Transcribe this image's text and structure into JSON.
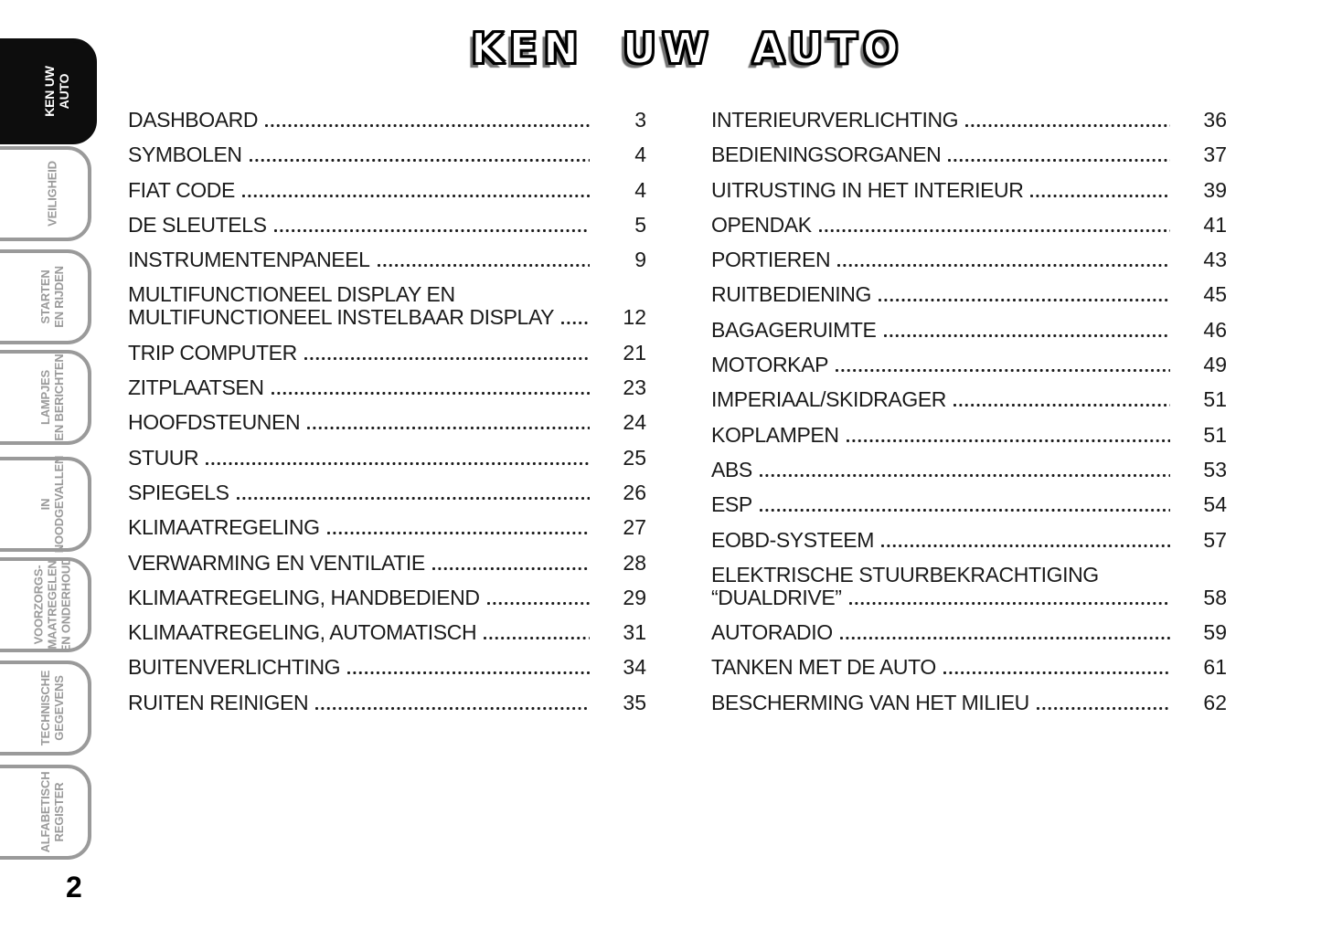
{
  "page": {
    "title": "KEN UW AUTO",
    "page_number": "2",
    "colors": {
      "text": "#1a1a1a",
      "tab_inactive_border": "#9a9a9a",
      "tab_inactive_text": "#9a9a9a",
      "tab_active_bg": "#0d0d0d",
      "tab_active_text": "#ffffff",
      "background": "#ffffff"
    }
  },
  "sidebar": {
    "tabs": [
      {
        "label": "KEN UW\nAUTO",
        "active": true
      },
      {
        "label": "VEILIGHEID",
        "active": false
      },
      {
        "label": "STARTEN\nEN RIJDEN",
        "active": false
      },
      {
        "label": "LAMPJES\nEN BERICHTEN",
        "active": false
      },
      {
        "label": "IN\nNOODGEVALLEN",
        "active": false
      },
      {
        "label": "VOORZORGS-\nMAATREGELEN\nEN ONDERHOUD",
        "active": false
      },
      {
        "label": "TECHNISCHE\nGEGEVENS",
        "active": false
      },
      {
        "label": "ALFABETISCH\nREGISTER",
        "active": false
      }
    ]
  },
  "toc": {
    "left": [
      {
        "label": "DASHBOARD",
        "page": "3"
      },
      {
        "label": "SYMBOLEN",
        "page": "4"
      },
      {
        "label": "FIAT CODE",
        "page": "4"
      },
      {
        "label": "DE SLEUTELS",
        "page": "5"
      },
      {
        "label": "INSTRUMENTENPANEEL",
        "page": "9"
      },
      {
        "label": "MULTIFUNCTIONEEL DISPLAY EN",
        "label2": "MULTIFUNCTIONEEL INSTELBAAR DISPLAY",
        "page": "12"
      },
      {
        "label": "TRIP COMPUTER",
        "page": "21"
      },
      {
        "label": "ZITPLAATSEN",
        "page": "23"
      },
      {
        "label": "HOOFDSTEUNEN",
        "page": "24"
      },
      {
        "label": "STUUR",
        "page": "25"
      },
      {
        "label": "SPIEGELS",
        "page": "26"
      },
      {
        "label": "KLIMAATREGELING",
        "page": "27"
      },
      {
        "label": "VERWARMING EN VENTILATIE",
        "page": "28"
      },
      {
        "label": "KLIMAATREGELING, HANDBEDIEND",
        "page": "29"
      },
      {
        "label": "KLIMAATREGELING, AUTOMATISCH",
        "page": "31"
      },
      {
        "label": "BUITENVERLICHTING",
        "page": "34"
      },
      {
        "label": "RUITEN REINIGEN",
        "page": "35"
      }
    ],
    "right": [
      {
        "label": "INTERIEURVERLICHTING",
        "page": "36"
      },
      {
        "label": "BEDIENINGSORGANEN",
        "page": "37"
      },
      {
        "label": "UITRUSTING IN HET INTERIEUR",
        "page": "39"
      },
      {
        "label": "OPENDAK",
        "page": "41"
      },
      {
        "label": "PORTIEREN",
        "page": "43"
      },
      {
        "label": "RUITBEDIENING",
        "page": "45"
      },
      {
        "label": "BAGAGERUIMTE",
        "page": "46"
      },
      {
        "label": "MOTORKAP",
        "page": "49"
      },
      {
        "label": "IMPERIAAL/SKIDRAGER",
        "page": "51"
      },
      {
        "label": "KOPLAMPEN",
        "page": "51"
      },
      {
        "label": "ABS",
        "page": "53"
      },
      {
        "label": "ESP",
        "page": "54"
      },
      {
        "label": "EOBD-SYSTEEM",
        "page": "57"
      },
      {
        "label": "ELEKTRISCHE STUURBEKRACHTIGING",
        "label2": "“DUALDRIVE”",
        "page": "58"
      },
      {
        "label": "AUTORADIO",
        "page": "59"
      },
      {
        "label": "TANKEN MET DE AUTO",
        "page": "61"
      },
      {
        "label": "BESCHERMING VAN HET MILIEU",
        "page": "62"
      }
    ]
  }
}
